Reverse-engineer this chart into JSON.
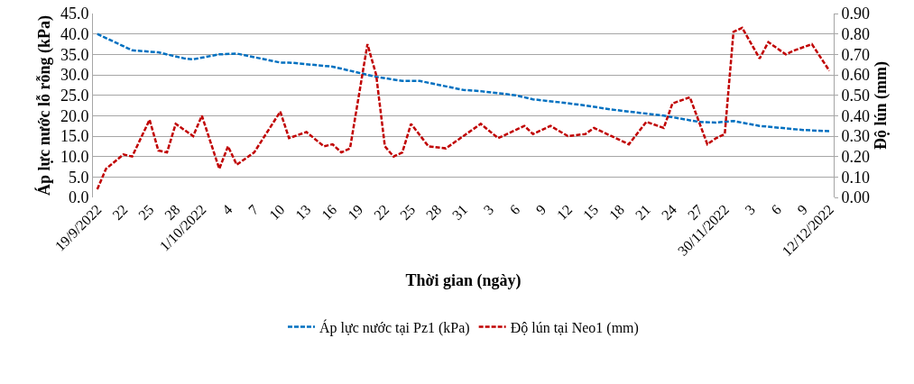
{
  "chart_data": {
    "type": "line",
    "xlabel": "Thời gian (ngày)",
    "ylabel": "Áp lực nước lỗ rỗng (kPa)",
    "y2label": "Độ lún (mm)",
    "xlim": [
      "2022-09-18T12:00",
      "2022-12-12T12:00"
    ],
    "xticks": [
      {
        "value": "2022-09-19",
        "label": "19/9/2022"
      },
      {
        "value": "2022-09-22",
        "label": "22"
      },
      {
        "value": "2022-09-25",
        "label": "25"
      },
      {
        "value": "2022-09-28",
        "label": "28"
      },
      {
        "value": "2022-10-01",
        "label": "1/10/2022"
      },
      {
        "value": "2022-10-04",
        "label": "4"
      },
      {
        "value": "2022-10-07",
        "label": "7"
      },
      {
        "value": "2022-10-10",
        "label": "10"
      },
      {
        "value": "2022-10-13",
        "label": "13"
      },
      {
        "value": "2022-10-16",
        "label": "16"
      },
      {
        "value": "2022-10-19",
        "label": "19"
      },
      {
        "value": "2022-10-22",
        "label": "22"
      },
      {
        "value": "2022-10-25",
        "label": "25"
      },
      {
        "value": "2022-10-28",
        "label": "28"
      },
      {
        "value": "2022-10-31",
        "label": "31"
      },
      {
        "value": "2022-11-03",
        "label": "3"
      },
      {
        "value": "2022-11-06",
        "label": "6"
      },
      {
        "value": "2022-11-09",
        "label": "9"
      },
      {
        "value": "2022-11-12",
        "label": "12"
      },
      {
        "value": "2022-11-15",
        "label": "15"
      },
      {
        "value": "2022-11-18",
        "label": "18"
      },
      {
        "value": "2022-11-21",
        "label": "21"
      },
      {
        "value": "2022-11-24",
        "label": "24"
      },
      {
        "value": "2022-11-27",
        "label": "27"
      },
      {
        "value": "2022-11-30",
        "label": "30/11/2022"
      },
      {
        "value": "2022-12-03",
        "label": "3"
      },
      {
        "value": "2022-12-06",
        "label": "6"
      },
      {
        "value": "2022-12-09",
        "label": "9"
      },
      {
        "value": "2022-12-12",
        "label": "12/12/2022"
      }
    ],
    "ylim": [
      0,
      45
    ],
    "yticks": [
      {
        "value": 0,
        "label": "0.0"
      },
      {
        "value": 5,
        "label": "5.0"
      },
      {
        "value": 10,
        "label": "10.0"
      },
      {
        "value": 15,
        "label": "15.0"
      },
      {
        "value": 20,
        "label": "20.0"
      },
      {
        "value": 25,
        "label": "25.0"
      },
      {
        "value": 30,
        "label": "30.0"
      },
      {
        "value": 35,
        "label": "35.0"
      },
      {
        "value": 40,
        "label": "40.0"
      },
      {
        "value": 45,
        "label": "45.0"
      }
    ],
    "y2lim": [
      0,
      0.9
    ],
    "y2ticks": [
      {
        "value": 0,
        "label": "0.00"
      },
      {
        "value": 0.1,
        "label": "0.10"
      },
      {
        "value": 0.2,
        "label": "0.20"
      },
      {
        "value": 0.3,
        "label": "0.30"
      },
      {
        "value": 0.4,
        "label": "0.40"
      },
      {
        "value": 0.5,
        "label": "0.50"
      },
      {
        "value": 0.6,
        "label": "0.60"
      },
      {
        "value": 0.7,
        "label": "0.70"
      },
      {
        "value": 0.8,
        "label": "0.80"
      },
      {
        "value": 0.9,
        "label": "0.90"
      }
    ],
    "grid": "y",
    "legend": "bottom",
    "marker": "none",
    "line_style": "dashed",
    "series": [
      {
        "name": "Áp lực nước tại Pz1 (kPa)",
        "color": "#0070c0",
        "x": [
          "2022-09-19",
          "2022-09-23",
          "2022-09-26",
          "2022-09-29",
          "2022-09-30",
          "2022-10-03",
          "2022-10-05",
          "2022-10-10",
          "2022-10-11",
          "2022-10-16",
          "2022-10-19",
          "2022-10-21",
          "2022-10-24",
          "2022-10-26",
          "2022-10-31",
          "2022-11-02",
          "2022-11-06",
          "2022-11-08",
          "2022-11-11",
          "2022-11-14",
          "2022-11-17",
          "2022-11-21",
          "2022-11-23",
          "2022-11-27",
          "2022-11-29",
          "2022-12-01",
          "2022-12-04",
          "2022-12-09",
          "2022-12-12"
        ],
        "values": [
          40.0,
          36.0,
          35.5,
          34.0,
          33.8,
          35.0,
          35.2,
          33.0,
          33.0,
          32.0,
          30.5,
          29.5,
          28.5,
          28.5,
          26.3,
          26.0,
          25.0,
          24.0,
          23.3,
          22.5,
          21.5,
          20.5,
          20.0,
          18.5,
          18.3,
          18.7,
          17.5,
          16.5,
          16.2
        ]
      },
      {
        "name": "Độ lún tại Neo1 (mm)",
        "color": "#c00000",
        "axis": "y2",
        "x": [
          "2022-09-19",
          "2022-09-20",
          "2022-09-22",
          "2022-09-23",
          "2022-09-25",
          "2022-09-26",
          "2022-09-27",
          "2022-09-28",
          "2022-09-30",
          "2022-10-01",
          "2022-10-03",
          "2022-10-04",
          "2022-10-05",
          "2022-10-07",
          "2022-10-10",
          "2022-10-11",
          "2022-10-13",
          "2022-10-15",
          "2022-10-16",
          "2022-10-17",
          "2022-10-18",
          "2022-10-20",
          "2022-10-21",
          "2022-10-22",
          "2022-10-23",
          "2022-10-24",
          "2022-10-25",
          "2022-10-27",
          "2022-10-29",
          "2022-11-02",
          "2022-11-04",
          "2022-11-07",
          "2022-11-08",
          "2022-11-10",
          "2022-11-12",
          "2022-11-14",
          "2022-11-15",
          "2022-11-16",
          "2022-11-19",
          "2022-11-21",
          "2022-11-23",
          "2022-11-24",
          "2022-11-26",
          "2022-11-28",
          "2022-11-29",
          "2022-11-30",
          "2022-12-01",
          "2022-12-02",
          "2022-12-04",
          "2022-12-05",
          "2022-12-07",
          "2022-12-08",
          "2022-12-10",
          "2022-12-12"
        ],
        "values": [
          0.04,
          0.14,
          0.21,
          0.2,
          0.38,
          0.23,
          0.22,
          0.36,
          0.3,
          0.4,
          0.14,
          0.25,
          0.16,
          0.22,
          0.42,
          0.29,
          0.32,
          0.25,
          0.26,
          0.22,
          0.24,
          0.75,
          0.6,
          0.25,
          0.2,
          0.22,
          0.36,
          0.25,
          0.24,
          0.36,
          0.29,
          0.35,
          0.31,
          0.35,
          0.3,
          0.31,
          0.34,
          0.32,
          0.26,
          0.37,
          0.34,
          0.46,
          0.49,
          0.26,
          0.29,
          0.31,
          0.81,
          0.83,
          0.68,
          0.76,
          0.7,
          0.72,
          0.75,
          0.62
        ]
      }
    ]
  }
}
